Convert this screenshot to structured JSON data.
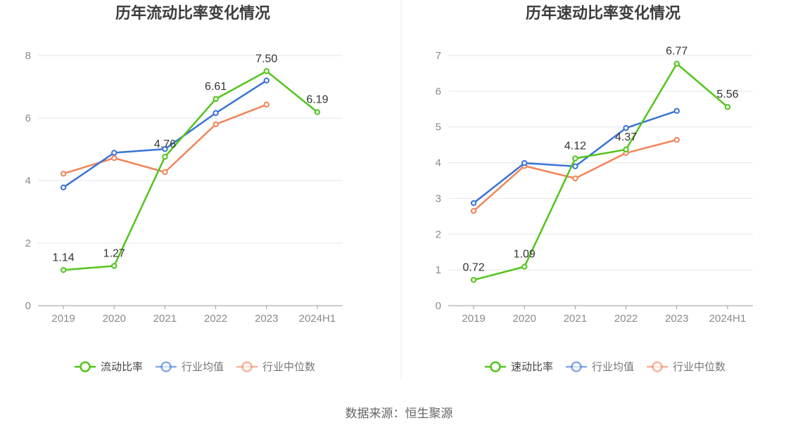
{
  "source_note": "数据来源：恒生聚源",
  "chart_data": [
    {
      "type": "line",
      "title": "历年流动比率变化情况",
      "categories": [
        "2019",
        "2020",
        "2021",
        "2022",
        "2023",
        "2024H1"
      ],
      "ylim": [
        0,
        8
      ],
      "yticks": [
        0,
        2,
        4,
        6,
        8
      ],
      "grid": true,
      "legend_position": "bottom",
      "series": [
        {
          "name": "流动比率",
          "color": "#52c41a",
          "show_labels": true,
          "values": [
            1.14,
            1.27,
            4.76,
            6.61,
            7.5,
            6.19
          ]
        },
        {
          "name": "行业均值",
          "color": "#3a73d8",
          "show_labels": false,
          "values": [
            3.78,
            4.89,
            5.01,
            6.16,
            7.2,
            null
          ]
        },
        {
          "name": "行业中位数",
          "color": "#f0855a",
          "show_labels": false,
          "values": [
            4.22,
            4.72,
            4.27,
            5.8,
            6.43,
            null
          ]
        }
      ]
    },
    {
      "type": "line",
      "title": "历年速动比率变化情况",
      "categories": [
        "2019",
        "2020",
        "2021",
        "2022",
        "2023",
        "2024H1"
      ],
      "ylim": [
        0,
        7
      ],
      "yticks": [
        0,
        1,
        2,
        3,
        4,
        5,
        6,
        7
      ],
      "grid": true,
      "legend_position": "bottom",
      "series": [
        {
          "name": "速动比率",
          "color": "#52c41a",
          "show_labels": true,
          "values": [
            0.72,
            1.09,
            4.12,
            4.37,
            6.77,
            5.56
          ]
        },
        {
          "name": "行业均值",
          "color": "#3a73d8",
          "show_labels": false,
          "values": [
            2.87,
            3.99,
            3.9,
            4.97,
            5.45,
            null
          ]
        },
        {
          "name": "行业中位数",
          "color": "#f0855a",
          "show_labels": false,
          "values": [
            2.65,
            3.91,
            3.56,
            4.27,
            4.64,
            null
          ]
        }
      ]
    }
  ]
}
